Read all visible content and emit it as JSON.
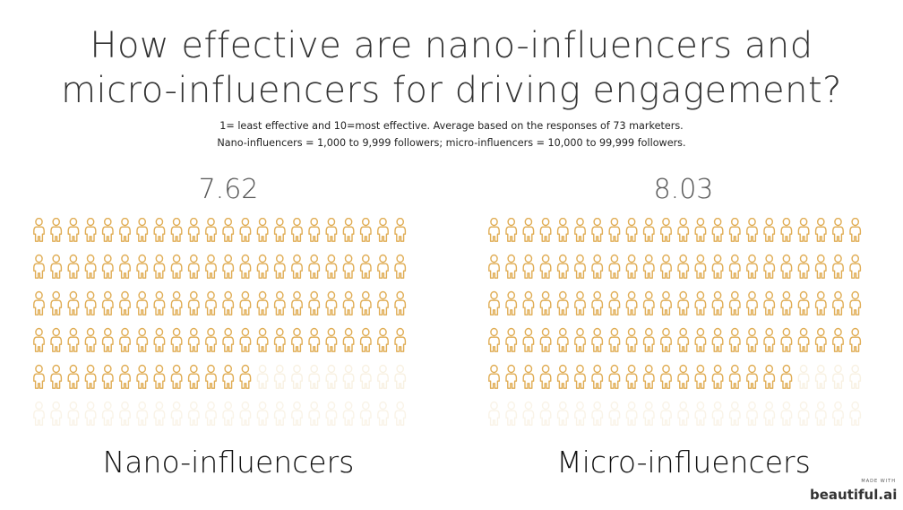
{
  "header": {
    "title_line1": "How effective are nano-influencers and",
    "title_line2": "micro-influencers for driving engagement?",
    "subtitle_line1": "1= least effective and 10=most effective. Average based on the responses of 73 marketers.",
    "subtitle_line2": "Nano-influencers = 1,000 to 9,999 followers; micro-influencers = 10,000 to 99,999 followers."
  },
  "chart_data": [
    {
      "type": "pictograph",
      "label": "Nano-influencers",
      "value": 7.62,
      "value_text": "7.62",
      "scale_max": 10,
      "icon": "person-icon",
      "icons_per_row": 22,
      "rows": 6
    },
    {
      "type": "pictograph",
      "label": "Micro-influencers",
      "value": 8.03,
      "value_text": "8.03",
      "scale_max": 10,
      "icon": "person-icon",
      "icons_per_row": 22,
      "rows": 6
    }
  ],
  "colors": {
    "icon_filled": "#e0ad55",
    "icon_empty": "#f3e6cc"
  },
  "branding": {
    "made_with": "MADE WITH",
    "name": "beautiful.ai"
  }
}
